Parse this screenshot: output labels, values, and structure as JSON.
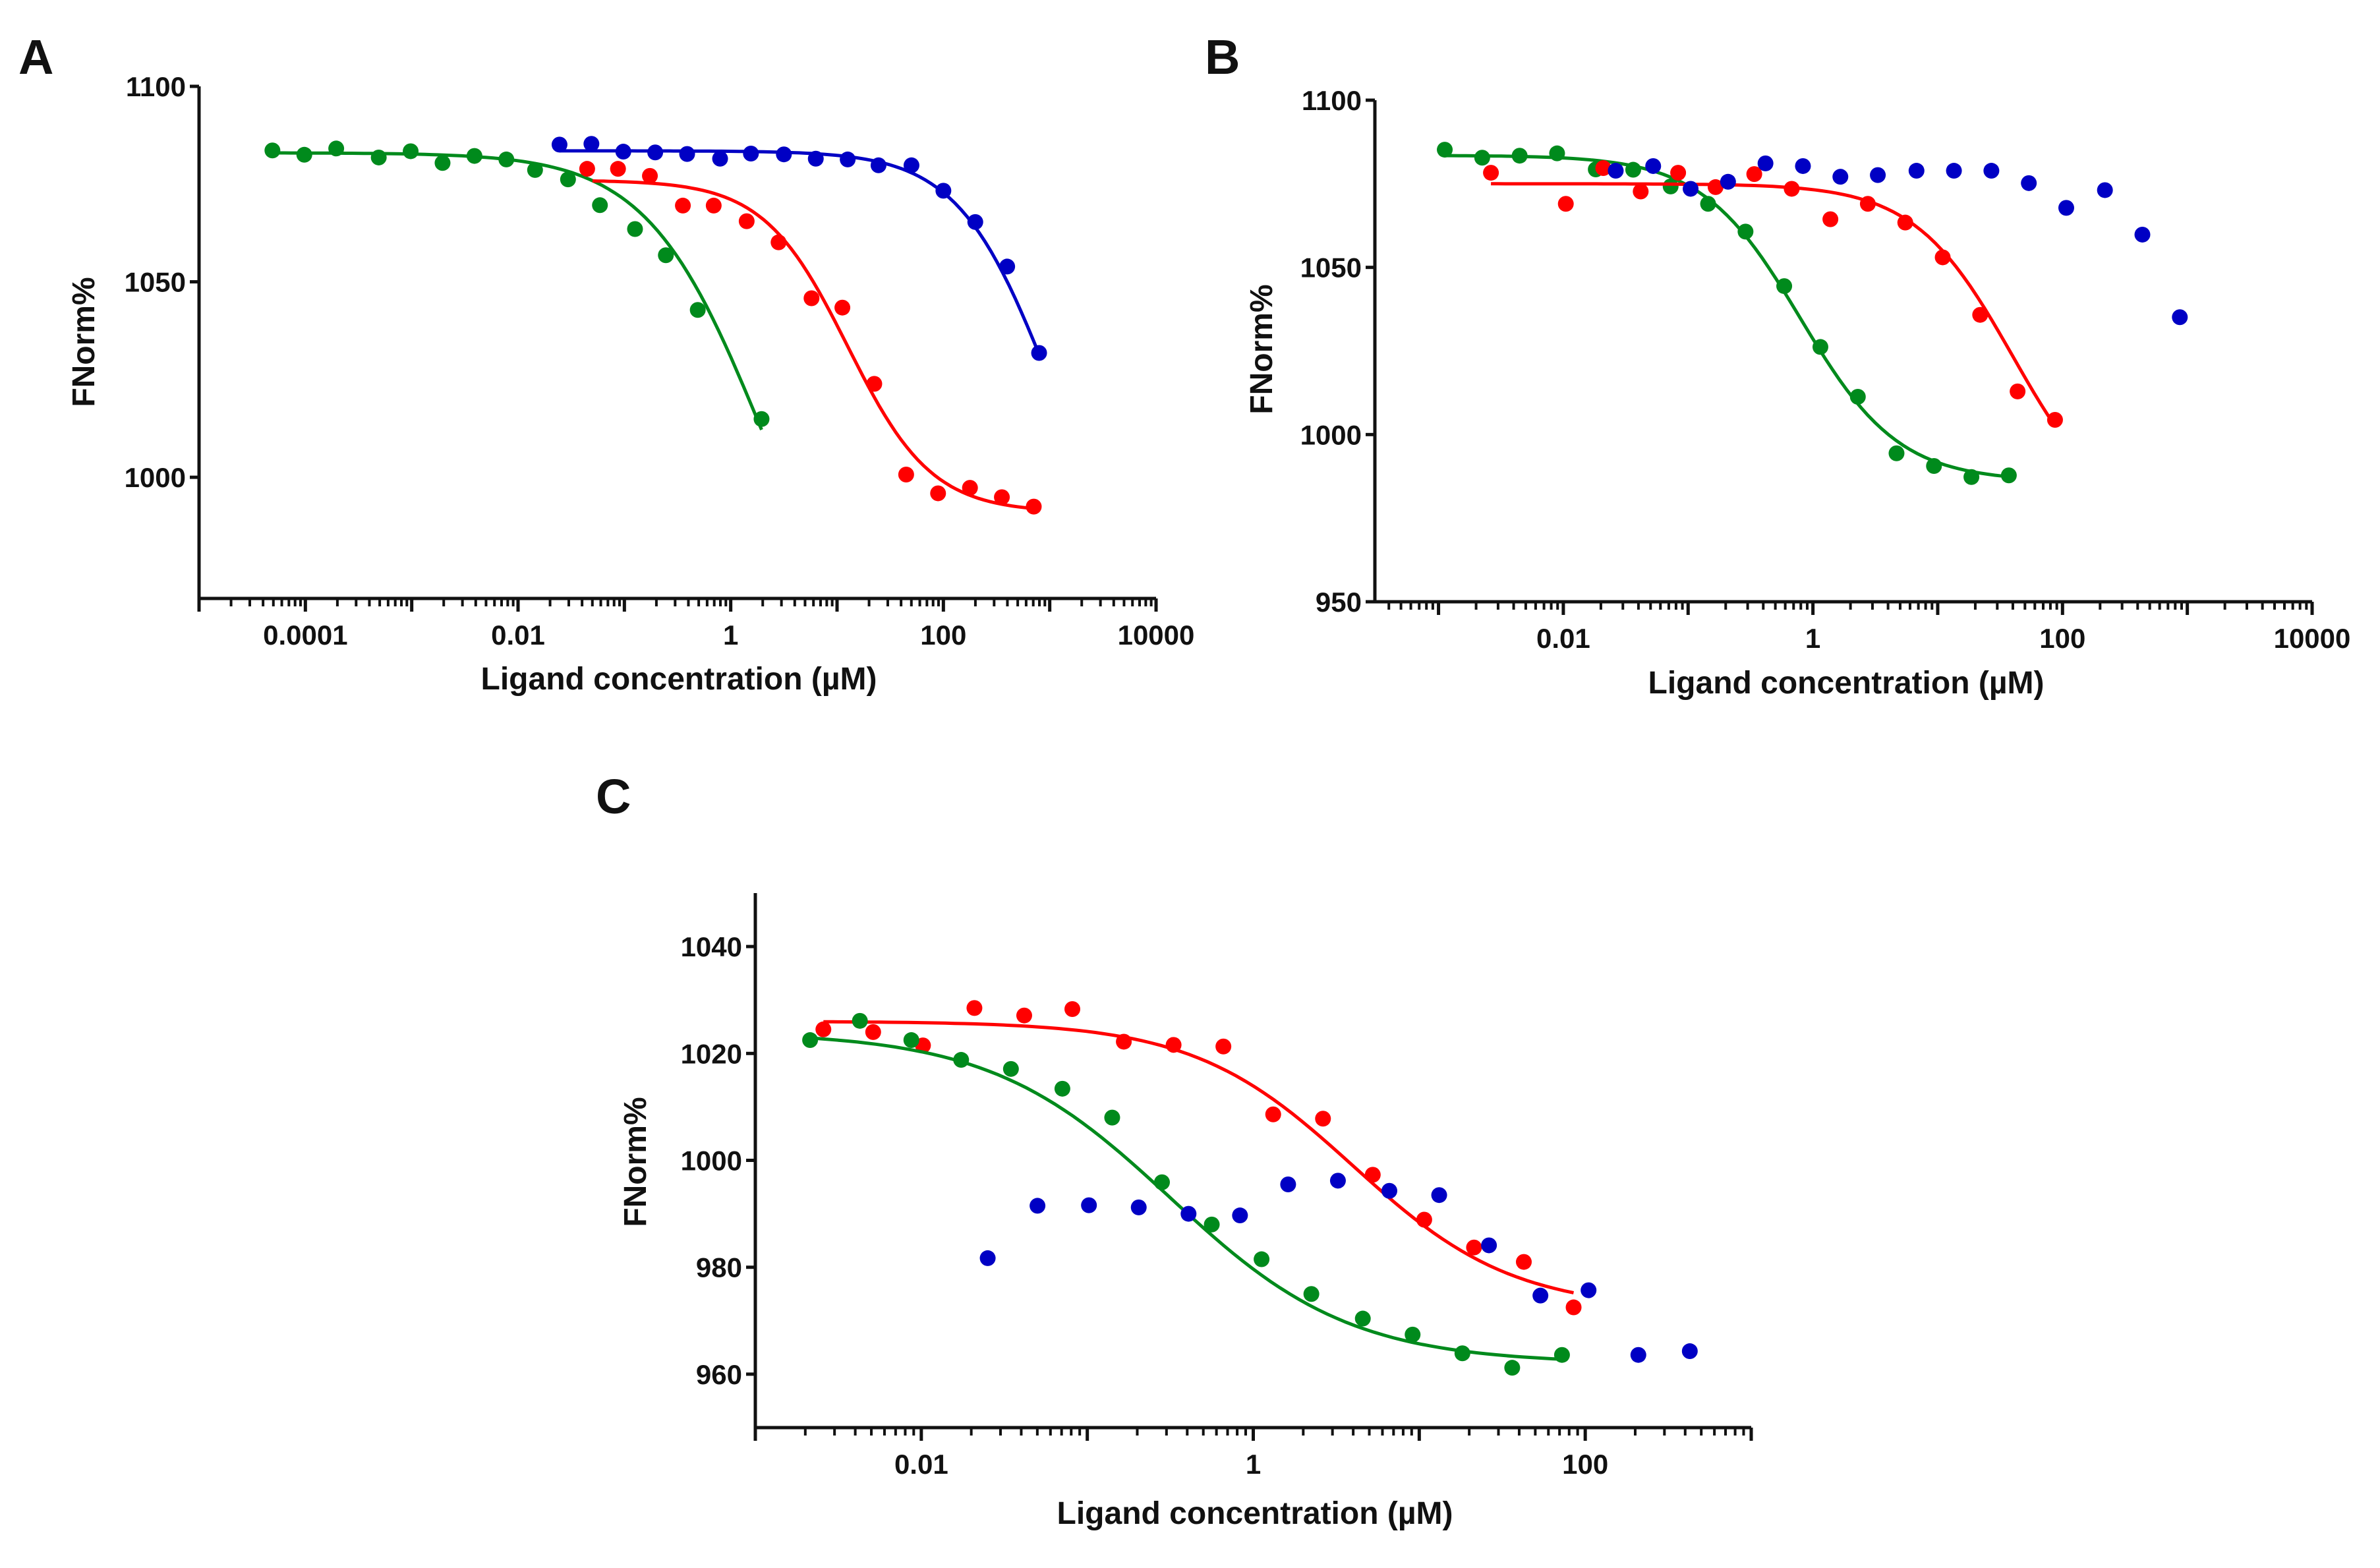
{
  "colors": {
    "green": "#008a1c",
    "blue": "#0000c4",
    "red": "#ff0000",
    "axis": "#111111"
  },
  "chart_data": [
    {
      "panel": "A",
      "type": "scatter",
      "xscale": "log10",
      "xlabel": "Ligand concentration (µM)",
      "ylabel": "FNorm%",
      "xlim_log10": [
        -5,
        4
      ],
      "ylim": [
        969,
        1100
      ],
      "xticks": [
        {
          "log10": -4,
          "label": "0.0001"
        },
        {
          "log10": -2,
          "label": "0.01"
        },
        {
          "log10": 0,
          "label": "1"
        },
        {
          "log10": 2,
          "label": "100"
        },
        {
          "log10": 4,
          "label": "10000"
        }
      ],
      "yticks": [
        {
          "value": 1000,
          "label": "1000"
        },
        {
          "value": 1050,
          "label": "1050"
        },
        {
          "value": 1100,
          "label": "1100"
        }
      ],
      "series": [
        {
          "name": "green",
          "log10_x": [
            -4.31,
            -4.01,
            -3.71,
            -3.31,
            -3.01,
            -2.71,
            -2.41,
            -2.11,
            -1.84,
            -1.53,
            -1.23,
            -0.9,
            -0.61,
            -0.31,
            0.29
          ],
          "y": [
            1083.6,
            1082.5,
            1084.1,
            1081.8,
            1083.4,
            1080.4,
            1082.2,
            1081.3,
            1078.6,
            1076.2,
            1069.6,
            1063.5,
            1056.8,
            1042.8,
            1014.9
          ],
          "fit": {
            "top": 1083,
            "bottom": 940,
            "log10_ec50": 0.3,
            "hill": 0.8,
            "range_log10": [
              -4.31,
              0.29
            ]
          }
        },
        {
          "name": "blue",
          "log10_x": [
            -1.61,
            -1.31,
            -1.01,
            -0.71,
            -0.41,
            -0.1,
            0.19,
            0.5,
            0.8,
            1.1,
            1.39,
            1.7,
            2.0,
            2.3,
            2.6,
            2.9
          ],
          "y": [
            1085.1,
            1085.3,
            1083.3,
            1083.1,
            1082.7,
            1081.5,
            1082.8,
            1082.6,
            1081.5,
            1081.3,
            1079.8,
            1079.8,
            1073.3,
            1065.3,
            1053.9,
            1031.8
          ],
          "fit": {
            "top": 1083.5,
            "bottom": 966,
            "log10_ec50": 3.0,
            "hill": 1.0,
            "range_log10": [
              -1.61,
              2.9
            ]
          }
        },
        {
          "name": "red",
          "log10_x": [
            -1.35,
            -1.06,
            -0.76,
            -0.45,
            -0.16,
            0.15,
            0.45,
            0.76,
            1.05,
            1.35,
            1.65,
            1.95,
            2.25,
            2.55,
            2.85
          ],
          "y": [
            1078.9,
            1078.9,
            1077.1,
            1069.5,
            1069.5,
            1065.5,
            1060.1,
            1045.8,
            1043.4,
            1023.9,
            1000.7,
            995.9,
            997.3,
            994.9,
            992.5
          ],
          "fit": {
            "top": 1076,
            "bottom": 991,
            "log10_ec50": 1.1,
            "hill": 1.1,
            "range_log10": [
              -1.3,
              2.85
            ]
          }
        }
      ]
    },
    {
      "panel": "B",
      "type": "scatter",
      "xscale": "log10",
      "xlabel": "Ligand concentration (µM)",
      "ylabel": "FNorm%",
      "xlim_log10": [
        -3.51,
        4
      ],
      "ylim": [
        950,
        1100
      ],
      "xticks": [
        {
          "log10": -2,
          "label": "0.01"
        },
        {
          "log10": 0,
          "label": "1"
        },
        {
          "log10": 2,
          "label": "100"
        },
        {
          "log10": 4,
          "label": "10000"
        }
      ],
      "yticks": [
        {
          "value": 950,
          "label": "950"
        },
        {
          "value": 1000,
          "label": "1000"
        },
        {
          "value": 1050,
          "label": "1050"
        },
        {
          "value": 1100,
          "label": "1100"
        }
      ],
      "series": [
        {
          "name": "green",
          "log10_x": [
            -2.95,
            -2.65,
            -2.35,
            -2.05,
            -1.74,
            -1.44,
            -1.14,
            -0.84,
            -0.54,
            -0.23,
            0.06,
            0.36,
            0.67,
            0.97,
            1.27,
            1.57
          ],
          "y": [
            1085.2,
            1082.8,
            1083.4,
            1084.1,
            1079.3,
            1079.2,
            1074.2,
            1069.0,
            1060.7,
            1044.4,
            1026.2,
            1011.3,
            994.4,
            990.6,
            987.3,
            987.8
          ],
          "fit": {
            "top": 1083.5,
            "bottom": 986,
            "log10_ec50": -0.1,
            "hill": 1.1,
            "range_log10": [
              -2.95,
              1.57
            ]
          }
        },
        {
          "name": "red",
          "log10_x": [
            -2.58,
            -1.98,
            -1.68,
            -1.38,
            -1.08,
            -0.78,
            -0.47,
            -0.17,
            0.14,
            0.44,
            0.74,
            1.04,
            1.34,
            1.64,
            1.94
          ],
          "y": [
            1078.3,
            1069.0,
            1079.7,
            1072.7,
            1078.3,
            1074.0,
            1077.9,
            1073.5,
            1064.4,
            1069.0,
            1063.4,
            1053.0,
            1035.8,
            1012.9,
            1004.4
          ],
          "fit": {
            "top": 1075,
            "bottom": 972,
            "log10_ec50": 1.6,
            "hill": 1.1,
            "range_log10": [
              -2.58,
              1.94
            ]
          }
        },
        {
          "name": "blue",
          "log10_x": [
            -1.58,
            -1.28,
            -0.98,
            -0.68,
            -0.38,
            -0.08,
            0.22,
            0.52,
            0.83,
            1.13,
            1.43,
            1.73,
            2.03,
            2.34,
            2.64,
            2.94
          ],
          "y": [
            1078.9,
            1080.3,
            1073.5,
            1075.6,
            1081.1,
            1080.3,
            1077.1,
            1077.6,
            1078.9,
            1078.9,
            1078.9,
            1075.2,
            1067.8,
            1073.1,
            1059.8,
            1035.1
          ],
          "fit": null
        }
      ]
    },
    {
      "panel": "C",
      "type": "scatter",
      "xscale": "log10",
      "xlabel": "Ligand concentration (µM)",
      "ylabel": "FNorm%",
      "xlim_log10": [
        -3,
        3
      ],
      "ylim": [
        950,
        1050
      ],
      "xticks": [
        {
          "log10": -2,
          "label": "0.01"
        },
        {
          "log10": 0,
          "label": "1"
        },
        {
          "log10": 2,
          "label": "100"
        }
      ],
      "yticks": [
        {
          "value": 960,
          "label": "960"
        },
        {
          "value": 980,
          "label": "980"
        },
        {
          "value": 1000,
          "label": "1000"
        },
        {
          "value": 1020,
          "label": "1020"
        },
        {
          "value": 1040,
          "label": "1040"
        }
      ],
      "series": [
        {
          "name": "red",
          "log10_x": [
            -2.59,
            -2.29,
            -1.99,
            -1.68,
            -1.38,
            -1.09,
            -0.78,
            -0.48,
            -0.18,
            0.12,
            0.42,
            0.72,
            1.03,
            1.33,
            1.63,
            1.93
          ],
          "y": [
            1024.5,
            1024.0,
            1021.5,
            1028.5,
            1027.1,
            1028.3,
            1022.2,
            1021.6,
            1021.3,
            1008.6,
            1007.8,
            997.3,
            988.9,
            983.7,
            981.0,
            972.5
          ],
          "fit": {
            "top": 1026,
            "bottom": 972,
            "log10_ec50": 0.6,
            "hill": 0.9,
            "range_log10": [
              -2.59,
              1.93
            ]
          }
        },
        {
          "name": "green",
          "log10_x": [
            -2.67,
            -2.37,
            -2.06,
            -1.76,
            -1.46,
            -1.15,
            -0.85,
            -0.55,
            -0.25,
            0.05,
            0.35,
            0.66,
            0.96,
            1.26,
            1.56,
            1.86
          ],
          "y": [
            1022.5,
            1026.1,
            1022.5,
            1018.8,
            1017.1,
            1013.4,
            1008.0,
            995.9,
            988.0,
            981.5,
            975.0,
            970.4,
            967.4,
            963.9,
            961.2,
            963.6
          ],
          "fit": {
            "top": 1024,
            "bottom": 962,
            "log10_ec50": -0.5,
            "hill": 0.8,
            "range_log10": [
              -2.67,
              1.86
            ]
          }
        },
        {
          "name": "blue",
          "log10_x": [
            -1.6,
            -1.3,
            -0.99,
            -0.69,
            -0.39,
            -0.08,
            0.21,
            0.51,
            0.82,
            1.12,
            1.42,
            1.73,
            2.02,
            2.32,
            2.63
          ],
          "y": [
            981.7,
            991.5,
            991.6,
            991.2,
            990.0,
            989.7,
            995.5,
            996.2,
            994.3,
            993.5,
            984.1,
            974.7,
            975.7,
            963.6,
            964.3
          ],
          "fit": null
        }
      ]
    }
  ]
}
